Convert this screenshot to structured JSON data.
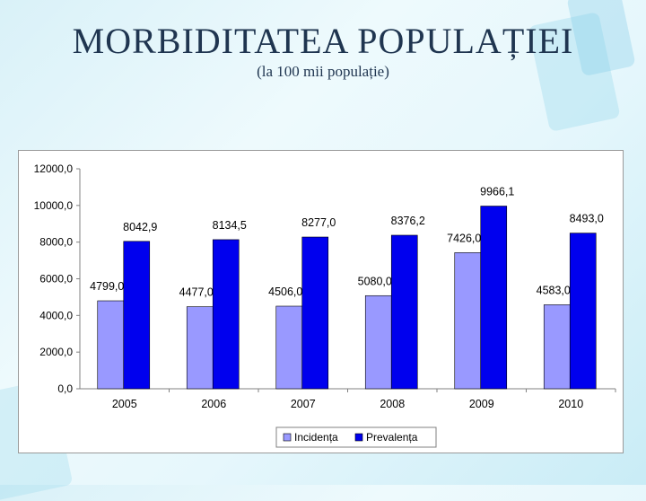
{
  "slide": {
    "title": "MORBIDITATEA POPULAȚIEI",
    "subtitle": "(la 100 mii populație)"
  },
  "colors": {
    "incidenta": "#9999ff",
    "prevalenta": "#0000ee",
    "title": "#1f3550"
  },
  "chart_data": {
    "type": "bar",
    "categories": [
      "2005",
      "2006",
      "2007",
      "2008",
      "2009",
      "2010"
    ],
    "series": [
      {
        "name": "Incidența",
        "values": [
          4799.0,
          4477.0,
          4506.0,
          5080.0,
          7426.0,
          4583.0
        ],
        "labels": [
          "4799,0",
          "4477,0",
          "4506,0",
          "5080,0",
          "7426,0",
          "4583,0"
        ]
      },
      {
        "name": "Prevalența",
        "values": [
          8042.9,
          8134.5,
          8277.0,
          8376.2,
          9966.1,
          8493.0
        ],
        "labels": [
          "8042,9",
          "8134,5",
          "8277,0",
          "8376,2",
          "9966,1",
          "8493,0"
        ]
      }
    ],
    "yticks": [
      "0,0",
      "2000,0",
      "4000,0",
      "6000,0",
      "8000,0",
      "10000,0",
      "12000,0"
    ],
    "ylim": [
      0,
      12000
    ],
    "legend_position": "bottom",
    "grid": false
  }
}
